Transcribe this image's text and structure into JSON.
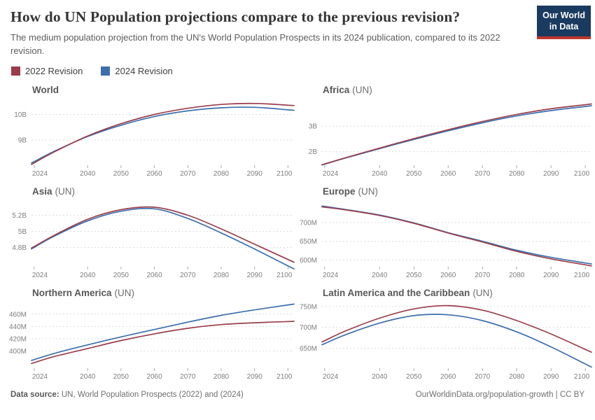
{
  "header": {
    "title": "How do UN Population projections compare to the previous revision?",
    "subtitle": "The medium population projection from the UN's World Population Prospects in its 2024 publication, compared to its 2022 revision.",
    "logo": {
      "line1": "Our World",
      "line2": "in Data"
    }
  },
  "legend": {
    "items": [
      {
        "label": "2022 Revision",
        "color": "#9a3d4b"
      },
      {
        "label": "2024 Revision",
        "color": "#3b6fae"
      }
    ]
  },
  "colors": {
    "revision2022": "#9a3d4b",
    "revision2024": "#3b6fae",
    "grid": "#dcdcdc",
    "tick": "#a8a8a8",
    "axis_text": "#7e7e7e",
    "logo_bg": "#1b3a5f",
    "logo_accent": "#c0362c"
  },
  "footer": {
    "datasource_label": "Data source:",
    "datasource_text": " UN, World Population Prospects (2022) and (2024)",
    "right_text": "OurWorldinData.org/population-growth | CC BY"
  },
  "chart_data": [
    {
      "type": "line",
      "title": "World",
      "title_suffix": "",
      "x": [
        2024,
        2030,
        2040,
        2050,
        2060,
        2070,
        2080,
        2090,
        2100
      ],
      "series": [
        {
          "name": "2022 Revision",
          "color": "#9a3d4b",
          "values": [
            8.11,
            8.54,
            9.16,
            9.64,
            10.0,
            10.24,
            10.39,
            10.43,
            10.36
          ]
        },
        {
          "name": "2024 Revision",
          "color": "#3b6fae",
          "values": [
            8.16,
            8.56,
            9.14,
            9.58,
            9.92,
            10.14,
            10.26,
            10.28,
            10.18
          ]
        }
      ],
      "unit": "billion people",
      "ylim": [
        8.02,
        10.56
      ],
      "yticks": [
        {
          "value": 9,
          "label": "9B"
        },
        {
          "value": 10,
          "label": "10B"
        }
      ],
      "xticks": [
        {
          "value": 2024,
          "label": "2024"
        },
        {
          "value": 2040,
          "label": "2040"
        },
        {
          "value": 2050,
          "label": "2050"
        },
        {
          "value": 2060,
          "label": "2060"
        },
        {
          "value": 2070,
          "label": "2070"
        },
        {
          "value": 2080,
          "label": "2080"
        },
        {
          "value": 2090,
          "label": "2090"
        },
        {
          "value": 2100,
          "label": "2100"
        }
      ]
    },
    {
      "type": "line",
      "title": "Africa",
      "title_suffix": "(UN)",
      "x": [
        2024,
        2030,
        2040,
        2050,
        2060,
        2070,
        2080,
        2090,
        2100
      ],
      "series": [
        {
          "name": "2022 Revision",
          "color": "#9a3d4b",
          "values": [
            1.52,
            1.76,
            2.14,
            2.51,
            2.86,
            3.18,
            3.46,
            3.68,
            3.84
          ]
        },
        {
          "name": "2024 Revision",
          "color": "#3b6fae",
          "values": [
            1.51,
            1.75,
            2.12,
            2.48,
            2.82,
            3.13,
            3.4,
            3.61,
            3.77
          ]
        }
      ],
      "unit": "billion people",
      "ylim": [
        1.47,
        4.02
      ],
      "yticks": [
        {
          "value": 2,
          "label": "2B"
        },
        {
          "value": 3,
          "label": "3B"
        }
      ],
      "xticks": [
        {
          "value": 2024,
          "label": "2024"
        },
        {
          "value": 2040,
          "label": "2040"
        },
        {
          "value": 2050,
          "label": "2050"
        },
        {
          "value": 2060,
          "label": "2060"
        },
        {
          "value": 2070,
          "label": "2070"
        },
        {
          "value": 2080,
          "label": "2080"
        },
        {
          "value": 2090,
          "label": "2090"
        },
        {
          "value": 2100,
          "label": "2100"
        }
      ]
    },
    {
      "type": "line",
      "title": "Asia",
      "title_suffix": "(UN)",
      "x": [
        2024,
        2030,
        2040,
        2050,
        2060,
        2070,
        2080,
        2090,
        2100
      ],
      "series": [
        {
          "name": "2022 Revision",
          "color": "#9a3d4b",
          "values": [
            4.81,
            4.95,
            5.15,
            5.27,
            5.3,
            5.2,
            5.03,
            4.84,
            4.65
          ]
        },
        {
          "name": "2024 Revision",
          "color": "#3b6fae",
          "values": [
            4.8,
            4.94,
            5.13,
            5.25,
            5.28,
            5.16,
            4.98,
            4.78,
            4.57
          ]
        }
      ],
      "unit": "billion people",
      "ylim": [
        4.56,
        5.37
      ],
      "yticks": [
        {
          "value": 4.8,
          "label": "4.8B"
        },
        {
          "value": 5,
          "label": "5B"
        },
        {
          "value": 5.2,
          "label": "5.2B"
        }
      ],
      "xticks": [
        {
          "value": 2024,
          "label": "2024"
        },
        {
          "value": 2040,
          "label": "2040"
        },
        {
          "value": 2050,
          "label": "2050"
        },
        {
          "value": 2060,
          "label": "2060"
        },
        {
          "value": 2070,
          "label": "2070"
        },
        {
          "value": 2080,
          "label": "2080"
        },
        {
          "value": 2090,
          "label": "2090"
        },
        {
          "value": 2100,
          "label": "2100"
        }
      ]
    },
    {
      "type": "line",
      "title": "Europe",
      "title_suffix": "(UN)",
      "x": [
        2024,
        2030,
        2040,
        2050,
        2060,
        2070,
        2080,
        2090,
        2100
      ],
      "series": [
        {
          "name": "2022 Revision",
          "color": "#9a3d4b",
          "values": [
            741,
            734,
            719,
            698,
            672,
            648,
            623,
            603,
            587
          ]
        },
        {
          "name": "2024 Revision",
          "color": "#3b6fae",
          "values": [
            743,
            735,
            720,
            699,
            673,
            650,
            626,
            607,
            592
          ]
        }
      ],
      "unit": "million people",
      "ylim": [
        582,
        756
      ],
      "yticks": [
        {
          "value": 600,
          "label": "600M"
        },
        {
          "value": 650,
          "label": "650M"
        },
        {
          "value": 700,
          "label": "700M"
        }
      ],
      "xticks": [
        {
          "value": 2024,
          "label": "2024"
        },
        {
          "value": 2040,
          "label": "2040"
        },
        {
          "value": 2050,
          "label": "2050"
        },
        {
          "value": 2060,
          "label": "2060"
        },
        {
          "value": 2070,
          "label": "2070"
        },
        {
          "value": 2080,
          "label": "2080"
        },
        {
          "value": 2090,
          "label": "2090"
        },
        {
          "value": 2100,
          "label": "2100"
        }
      ]
    },
    {
      "type": "line",
      "title": "Northern America",
      "title_suffix": "(UN)",
      "x": [
        2024,
        2030,
        2040,
        2050,
        2060,
        2070,
        2080,
        2090,
        2100
      ],
      "series": [
        {
          "name": "2022 Revision",
          "color": "#9a3d4b",
          "values": [
            381,
            391,
            404,
            417,
            428,
            437,
            443,
            446,
            448
          ]
        },
        {
          "name": "2024 Revision",
          "color": "#3b6fae",
          "values": [
            386,
            396,
            410,
            423,
            435,
            447,
            458,
            467,
            475
          ]
        }
      ],
      "unit": "million people",
      "ylim": [
        372,
        478
      ],
      "yticks": [
        {
          "value": 400,
          "label": "400M"
        },
        {
          "value": 420,
          "label": "420M"
        },
        {
          "value": 440,
          "label": "440M"
        },
        {
          "value": 460,
          "label": "460M"
        }
      ],
      "xticks": [
        {
          "value": 2024,
          "label": "2024"
        },
        {
          "value": 2040,
          "label": "2040"
        },
        {
          "value": 2050,
          "label": "2050"
        },
        {
          "value": 2060,
          "label": "2060"
        },
        {
          "value": 2070,
          "label": "2070"
        },
        {
          "value": 2080,
          "label": "2080"
        },
        {
          "value": 2090,
          "label": "2090"
        },
        {
          "value": 2100,
          "label": "2100"
        }
      ]
    },
    {
      "type": "line",
      "title": "Latin America and the Caribbean",
      "title_suffix": "(UN)",
      "x": [
        2024,
        2030,
        2040,
        2050,
        2060,
        2070,
        2080,
        2090,
        2100
      ],
      "series": [
        {
          "name": "2022 Revision",
          "color": "#9a3d4b",
          "values": [
            668,
            691,
            722,
            744,
            752,
            741,
            716,
            684,
            647
          ]
        },
        {
          "name": "2024 Revision",
          "color": "#3b6fae",
          "values": [
            661,
            682,
            710,
            728,
            730,
            716,
            689,
            653,
            612
          ]
        }
      ],
      "unit": "million people",
      "ylim": [
        602,
        758
      ],
      "yticks": [
        {
          "value": 650,
          "label": "650M"
        },
        {
          "value": 700,
          "label": "700M"
        },
        {
          "value": 750,
          "label": "750M"
        }
      ],
      "xticks": [
        {
          "value": 2024,
          "label": "2024"
        },
        {
          "value": 2040,
          "label": "2040"
        },
        {
          "value": 2050,
          "label": "2050"
        },
        {
          "value": 2060,
          "label": "2060"
        },
        {
          "value": 2070,
          "label": "2070"
        },
        {
          "value": 2080,
          "label": "2080"
        },
        {
          "value": 2090,
          "label": "2090"
        },
        {
          "value": 2100,
          "label": "2100"
        }
      ]
    }
  ]
}
